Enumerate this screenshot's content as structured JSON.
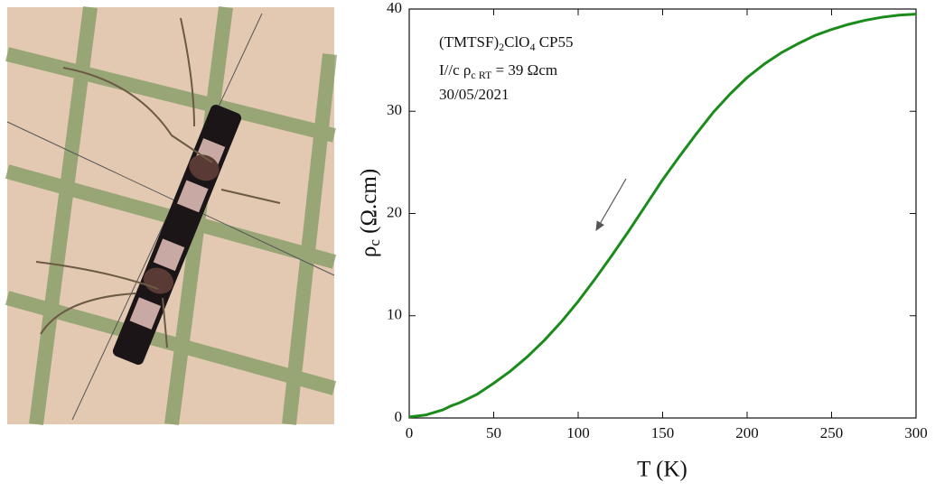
{
  "chart_data": {
    "type": "line",
    "annotations": [
      [
        "(TMTSF)",
        "2",
        "ClO",
        "4",
        "  CP55"
      ],
      [
        "I//c   ρ",
        "c RT",
        " = 39 Ωcm"
      ],
      [
        "30/05/2021"
      ]
    ],
    "x_label": "T (K)",
    "y_label": [
      "ρ",
      "c",
      " (Ω.cm)"
    ],
    "x": [
      0,
      10,
      20,
      25,
      30,
      40,
      50,
      60,
      70,
      80,
      90,
      100,
      110,
      120,
      130,
      140,
      150,
      160,
      170,
      180,
      190,
      200,
      210,
      220,
      230,
      240,
      250,
      260,
      270,
      280,
      290,
      300
    ],
    "values": [
      0.1,
      0.3,
      0.8,
      1.2,
      1.5,
      2.3,
      3.4,
      4.6,
      6.0,
      7.6,
      9.4,
      11.4,
      13.6,
      15.9,
      18.3,
      20.8,
      23.3,
      25.6,
      27.8,
      29.9,
      31.7,
      33.3,
      34.6,
      35.7,
      36.6,
      37.4,
      38.0,
      38.5,
      38.9,
      39.2,
      39.4,
      39.5
    ],
    "color": "#1b8c1b",
    "xlim": [
      0,
      300
    ],
    "xticks": [
      0,
      50,
      100,
      150,
      200,
      250,
      300
    ],
    "ylim": [
      0,
      40
    ],
    "yticks": [
      0,
      10,
      20,
      30,
      40
    ]
  }
}
